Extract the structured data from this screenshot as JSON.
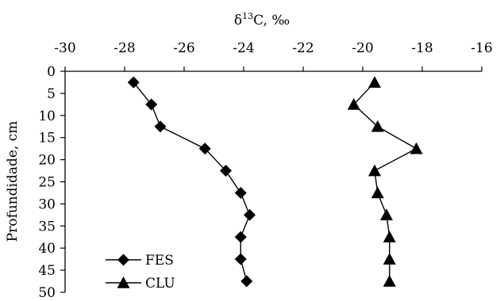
{
  "chart_data": {
    "type": "line",
    "orientation": "depth-profile",
    "title": "",
    "xlabel_base": "δ",
    "xlabel_sup": "13",
    "xlabel_rest": "C, ‰",
    "xlabel_position": "top",
    "ylabel": "Profundidade, cm",
    "xlim": [
      -30,
      -16
    ],
    "ylim": [
      0,
      50
    ],
    "y_inverted": true,
    "x_ticks": [
      "-30",
      "-28",
      "-26",
      "-24",
      "-22",
      "-20",
      "-18",
      "-16"
    ],
    "y_ticks": [
      "0",
      "5",
      "10",
      "15",
      "20",
      "25",
      "30",
      "35",
      "40",
      "45",
      "50"
    ],
    "grid": false,
    "legend_position": "bottom-left",
    "series": [
      {
        "name": "FES",
        "marker": "diamond",
        "color": "#000000",
        "points": [
          {
            "x": -27.7,
            "y": 2.5
          },
          {
            "x": -27.1,
            "y": 7.5
          },
          {
            "x": -26.8,
            "y": 12.5
          },
          {
            "x": -25.3,
            "y": 17.5
          },
          {
            "x": -24.6,
            "y": 22.5
          },
          {
            "x": -24.1,
            "y": 27.5
          },
          {
            "x": -23.8,
            "y": 32.5
          },
          {
            "x": -24.1,
            "y": 37.5
          },
          {
            "x": -24.1,
            "y": 42.5
          },
          {
            "x": -23.9,
            "y": 47.5
          }
        ]
      },
      {
        "name": "CLU",
        "marker": "triangle",
        "color": "#000000",
        "points": [
          {
            "x": -19.6,
            "y": 2.5
          },
          {
            "x": -20.3,
            "y": 7.5
          },
          {
            "x": -19.5,
            "y": 12.5
          },
          {
            "x": -18.2,
            "y": 17.5
          },
          {
            "x": -19.6,
            "y": 22.5
          },
          {
            "x": -19.5,
            "y": 27.5
          },
          {
            "x": -19.2,
            "y": 32.5
          },
          {
            "x": -19.1,
            "y": 37.5
          },
          {
            "x": -19.1,
            "y": 42.5
          },
          {
            "x": -19.1,
            "y": 47.5
          }
        ]
      }
    ]
  }
}
